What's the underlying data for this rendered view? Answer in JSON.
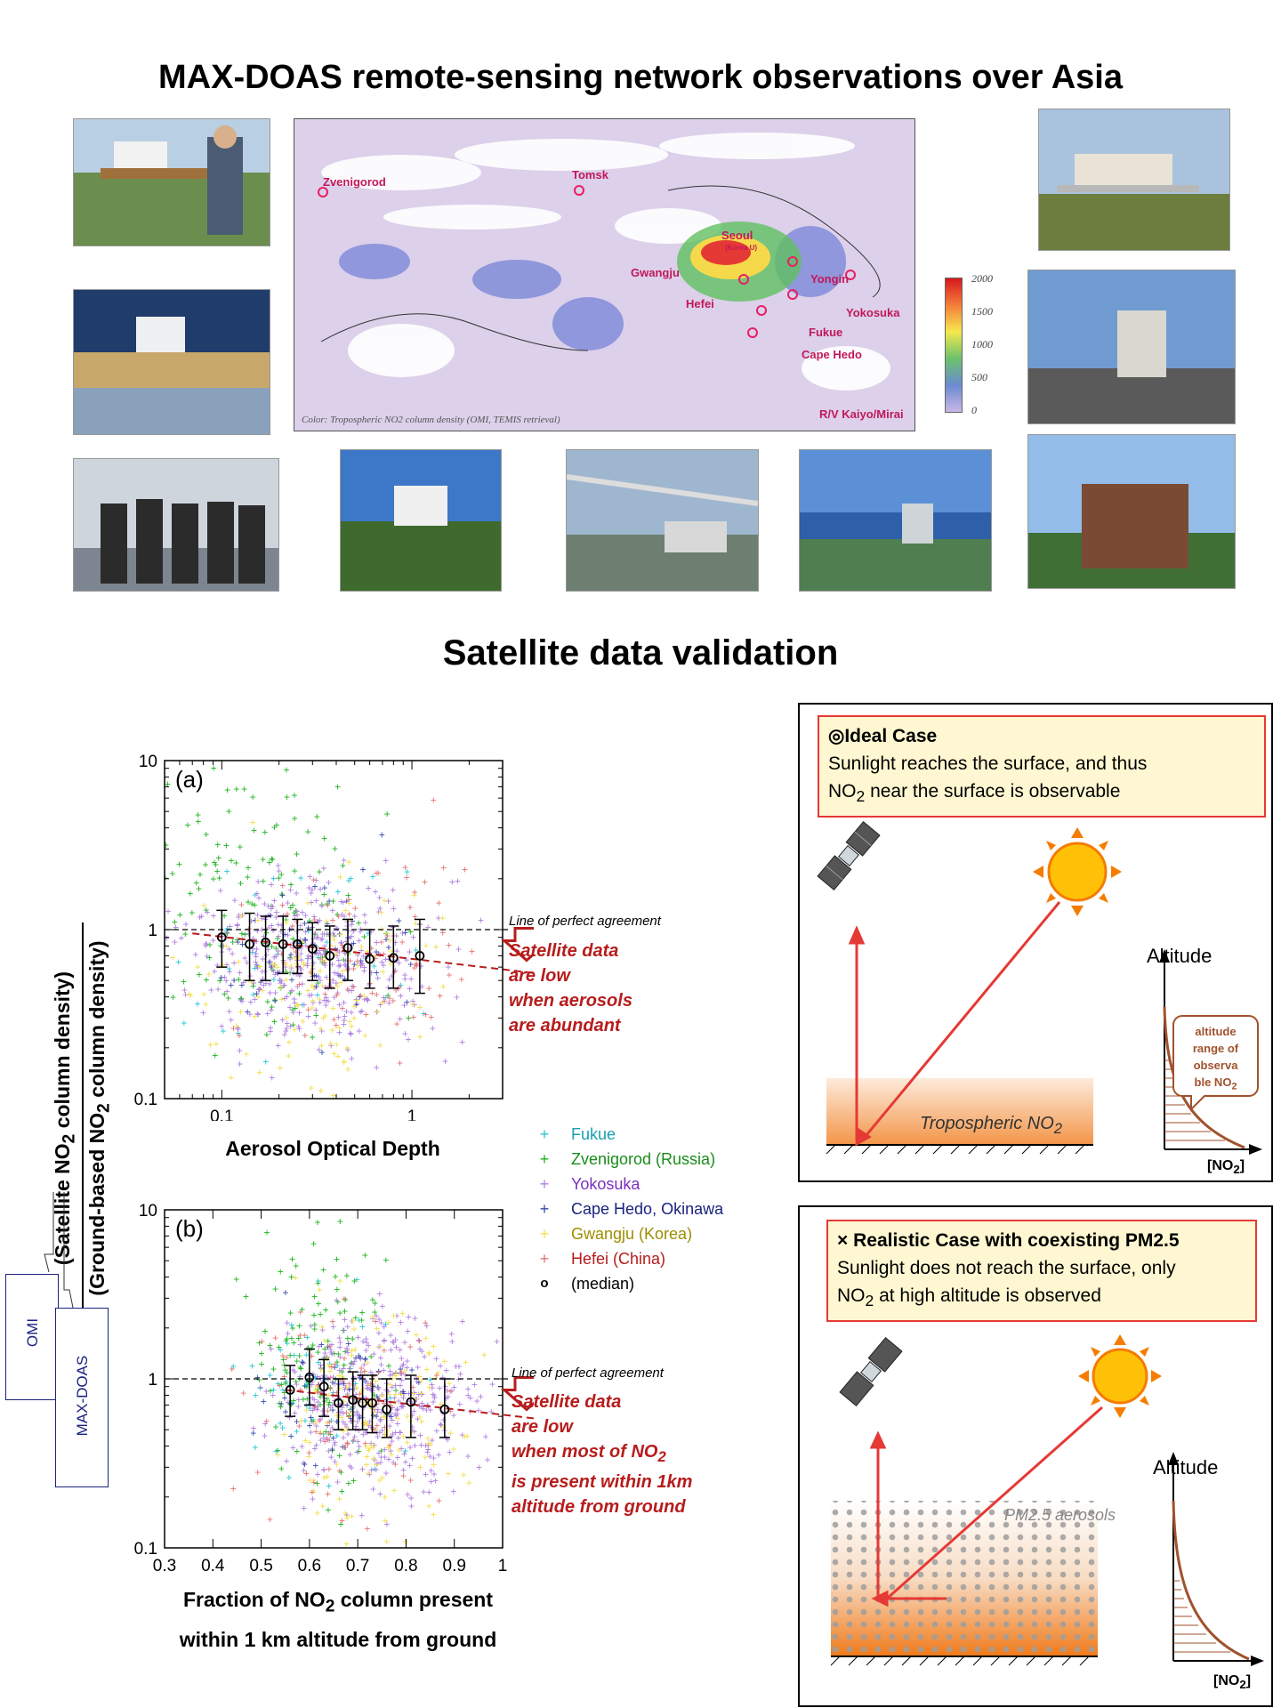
{
  "titles": {
    "main": "MAX-DOAS remote-sensing network observations over Asia",
    "validation": "Satellite data validation"
  },
  "map": {
    "stations": [
      "Zvenigorod",
      "Tomsk",
      "Seoul",
      "(Korea U)",
      "Gwangju",
      "Yongin",
      "Hefei",
      "Yokosuka",
      "Fukue",
      "Cape Hedo",
      "R/V Kaiyo/Mirai"
    ],
    "caption": "Color: Tropospheric NO2 column density (OMI, TEMIS retrieval)",
    "colorbar_ticks": [
      "2000",
      "1500",
      "1000",
      "500",
      "0"
    ]
  },
  "chart_a": {
    "panel_label": "(a)",
    "x_title": "Aerosol Optical Depth",
    "x_ticks": [
      "0.1",
      "1"
    ],
    "y_ticks": [
      "10",
      "1",
      "0.1"
    ],
    "line_label": "Line of perfect agreement",
    "note": [
      "Satellite data",
      "are low",
      "when aerosols",
      "are abundant"
    ]
  },
  "chart_b": {
    "panel_label": "(b)",
    "x_title_1": "Fraction of NO",
    "x_title_sub": "2",
    "x_title_2": " column present",
    "x_title_3": "within 1 km altitude from ground",
    "x_ticks": [
      "0.3",
      "0.4",
      "0.5",
      "0.6",
      "0.7",
      "0.8",
      "0.9",
      "1"
    ],
    "y_ticks": [
      "10",
      "1",
      "0.1"
    ],
    "line_label": "Line of perfect agreement",
    "note_1": "Satellite data",
    "note_2": "are low",
    "note_3": "when most of NO",
    "note_3_sub": "2",
    "note_4": "is present within 1km",
    "note_5": "altitude from ground"
  },
  "y_axis": {
    "num_1": "(Satellite NO",
    "num_sub": "2",
    "num_2": " column density)",
    "den_1": "(Ground-based NO",
    "den_sub": "2",
    "den_2": " column density)"
  },
  "callouts": {
    "omi": "OMI",
    "maxdoas": "MAX-DOAS"
  },
  "legend": [
    {
      "label": "Fukue",
      "color": "#26c6da",
      "text_color": "#1aa0b0",
      "marker": "+"
    },
    {
      "label": "Zvenigorod (Russia)",
      "color": "#1db41d",
      "text_color": "#1a8c1a",
      "marker": "+"
    },
    {
      "label": "Yokosuka",
      "color": "#b07fe0",
      "text_color": "#7b2fbf",
      "marker": "+"
    },
    {
      "label": "Cape Hedo, Okinawa",
      "color": "#3949ab",
      "text_color": "#1a237e",
      "marker": "+"
    },
    {
      "label": "Gwangju (Korea)",
      "color": "#f4e04d",
      "text_color": "#9e8e00",
      "marker": "+"
    },
    {
      "label": "Hefei (China)",
      "color": "#e57373",
      "text_color": "#b71c1c",
      "marker": "+"
    },
    {
      "label": "(median)",
      "color": "#000000",
      "text_color": "#000000",
      "marker": "o"
    }
  ],
  "ideal": {
    "title_icon": "◎",
    "title": "Ideal Case",
    "line1": "Sunlight reaches the surface, and thus",
    "line2a": "NO",
    "line2sub": "2",
    "line2b": " near the surface is observable",
    "altitude": "Altitude",
    "trop_1": "Tropospheric NO",
    "trop_sub": "2",
    "bubble_1": "altitude",
    "bubble_2": "range of",
    "bubble_3": "observa",
    "bubble_4": "ble NO",
    "bubble_sub": "2",
    "no2_label_1": "[NO",
    "no2_sub": "2",
    "no2_label_2": "]"
  },
  "realistic": {
    "title_icon": "×",
    "title": "Realistic Case with coexisting PM2.5",
    "line1": "Sunlight does not reach the surface, only",
    "line2a": "NO",
    "line2sub": "2",
    "line2b": " at high altitude is observed",
    "altitude": "Altitude",
    "pm": "PM2.5 aerosols",
    "no2_label_1": "[NO",
    "no2_sub": "2",
    "no2_label_2": "]"
  },
  "chart_data": [
    {
      "type": "scatter",
      "title": "(a)",
      "xlabel": "Aerosol Optical Depth",
      "ylabel": "(Satellite NO2 column density) / (Ground-based NO2 column density)",
      "x_scale": "log",
      "y_scale": "log",
      "xlim": [
        0.05,
        3
      ],
      "ylim": [
        0.1,
        10
      ],
      "reference_line": {
        "label": "Line of perfect agreement",
        "y": 1
      },
      "median": {
        "x": [
          0.1,
          0.14,
          0.17,
          0.21,
          0.25,
          0.3,
          0.37,
          0.46,
          0.6,
          0.8,
          1.1
        ],
        "y": [
          0.9,
          0.82,
          0.84,
          0.82,
          0.82,
          0.77,
          0.7,
          0.78,
          0.67,
          0.68,
          0.7
        ],
        "err_low": [
          0.6,
          0.5,
          0.5,
          0.55,
          0.55,
          0.5,
          0.45,
          0.5,
          0.45,
          0.45,
          0.42
        ],
        "err_high": [
          1.3,
          1.25,
          1.2,
          1.2,
          1.15,
          1.1,
          1.05,
          1.15,
          1.0,
          1.05,
          1.15
        ]
      },
      "fit": {
        "x": [
          0.07,
          3
        ],
        "y": [
          0.95,
          0.55
        ]
      },
      "series": [
        {
          "name": "Fukue",
          "color": "#26c6da"
        },
        {
          "name": "Zvenigorod (Russia)",
          "color": "#1db41d"
        },
        {
          "name": "Yokosuka",
          "color": "#b07fe0"
        },
        {
          "name": "Cape Hedo, Okinawa",
          "color": "#3949ab"
        },
        {
          "name": "Gwangju (Korea)",
          "color": "#f4e04d"
        },
        {
          "name": "Hefei (China)",
          "color": "#e57373"
        }
      ],
      "scatter_cloud": {
        "Fukue": {
          "n": 40,
          "x_center": 0.2,
          "x_spread": 0.35,
          "y_center": 0.7,
          "y_spread": 0.3
        },
        "Zvenigorod (Russia)": {
          "n": 160,
          "x_center": 0.17,
          "x_spread": 0.35,
          "y_center": 1.3,
          "y_spread": 0.42
        },
        "Yokosuka": {
          "n": 420,
          "x_center": 0.28,
          "x_spread": 0.32,
          "y_center": 0.65,
          "y_spread": 0.25
        },
        "Cape Hedo, Okinawa": {
          "n": 60,
          "x_center": 0.3,
          "x_spread": 0.3,
          "y_center": 0.7,
          "y_spread": 0.22
        },
        "Gwangju (Korea)": {
          "n": 130,
          "x_center": 0.35,
          "x_spread": 0.3,
          "y_center": 0.5,
          "y_spread": 0.28
        },
        "Hefei (China)": {
          "n": 90,
          "x_center": 0.55,
          "x_spread": 0.28,
          "y_center": 0.65,
          "y_spread": 0.28
        }
      }
    },
    {
      "type": "scatter",
      "title": "(b)",
      "xlabel": "Fraction of NO2 column present within 1 km altitude from ground",
      "ylabel": "(Satellite NO2 column density) / (Ground-based NO2 column density)",
      "x_scale": "linear",
      "y_scale": "log",
      "xlim": [
        0.3,
        1.0
      ],
      "ylim": [
        0.1,
        10
      ],
      "reference_line": {
        "label": "Line of perfect agreement",
        "y": 1
      },
      "median": {
        "x": [
          0.56,
          0.6,
          0.63,
          0.66,
          0.69,
          0.71,
          0.73,
          0.76,
          0.81,
          0.88
        ],
        "y": [
          0.86,
          1.02,
          0.9,
          0.72,
          0.75,
          0.72,
          0.72,
          0.66,
          0.73,
          0.66
        ],
        "err_low": [
          0.6,
          0.7,
          0.6,
          0.5,
          0.5,
          0.5,
          0.48,
          0.45,
          0.45,
          0.45
        ],
        "err_high": [
          1.2,
          1.5,
          1.3,
          1.0,
          1.1,
          1.05,
          1.05,
          1.0,
          1.05,
          1.0
        ]
      },
      "fit": {
        "x": [
          0.55,
          1.0
        ],
        "y": [
          0.86,
          0.58
        ]
      },
      "series": [
        {
          "name": "Fukue",
          "color": "#26c6da"
        },
        {
          "name": "Zvenigorod (Russia)",
          "color": "#1db41d"
        },
        {
          "name": "Yokosuka",
          "color": "#b07fe0"
        },
        {
          "name": "Cape Hedo, Okinawa",
          "color": "#3949ab"
        },
        {
          "name": "Gwangju (Korea)",
          "color": "#f4e04d"
        },
        {
          "name": "Hefei (China)",
          "color": "#e57373"
        }
      ],
      "scatter_cloud": {
        "Fukue": {
          "n": 60,
          "x_center": 0.6,
          "x_spread": 0.08,
          "y_center": 0.8,
          "y_spread": 0.25
        },
        "Zvenigorod (Russia)": {
          "n": 140,
          "x_center": 0.62,
          "x_spread": 0.07,
          "y_center": 1.4,
          "y_spread": 0.35
        },
        "Yokosuka": {
          "n": 420,
          "x_center": 0.74,
          "x_spread": 0.1,
          "y_center": 0.75,
          "y_spread": 0.25
        },
        "Cape Hedo, Okinawa": {
          "n": 60,
          "x_center": 0.65,
          "x_spread": 0.08,
          "y_center": 0.8,
          "y_spread": 0.2
        },
        "Gwangju (Korea)": {
          "n": 160,
          "x_center": 0.72,
          "x_spread": 0.1,
          "y_center": 0.55,
          "y_spread": 0.3
        },
        "Hefei (China)": {
          "n": 90,
          "x_center": 0.68,
          "x_spread": 0.1,
          "y_center": 0.7,
          "y_spread": 0.28
        }
      }
    }
  ]
}
